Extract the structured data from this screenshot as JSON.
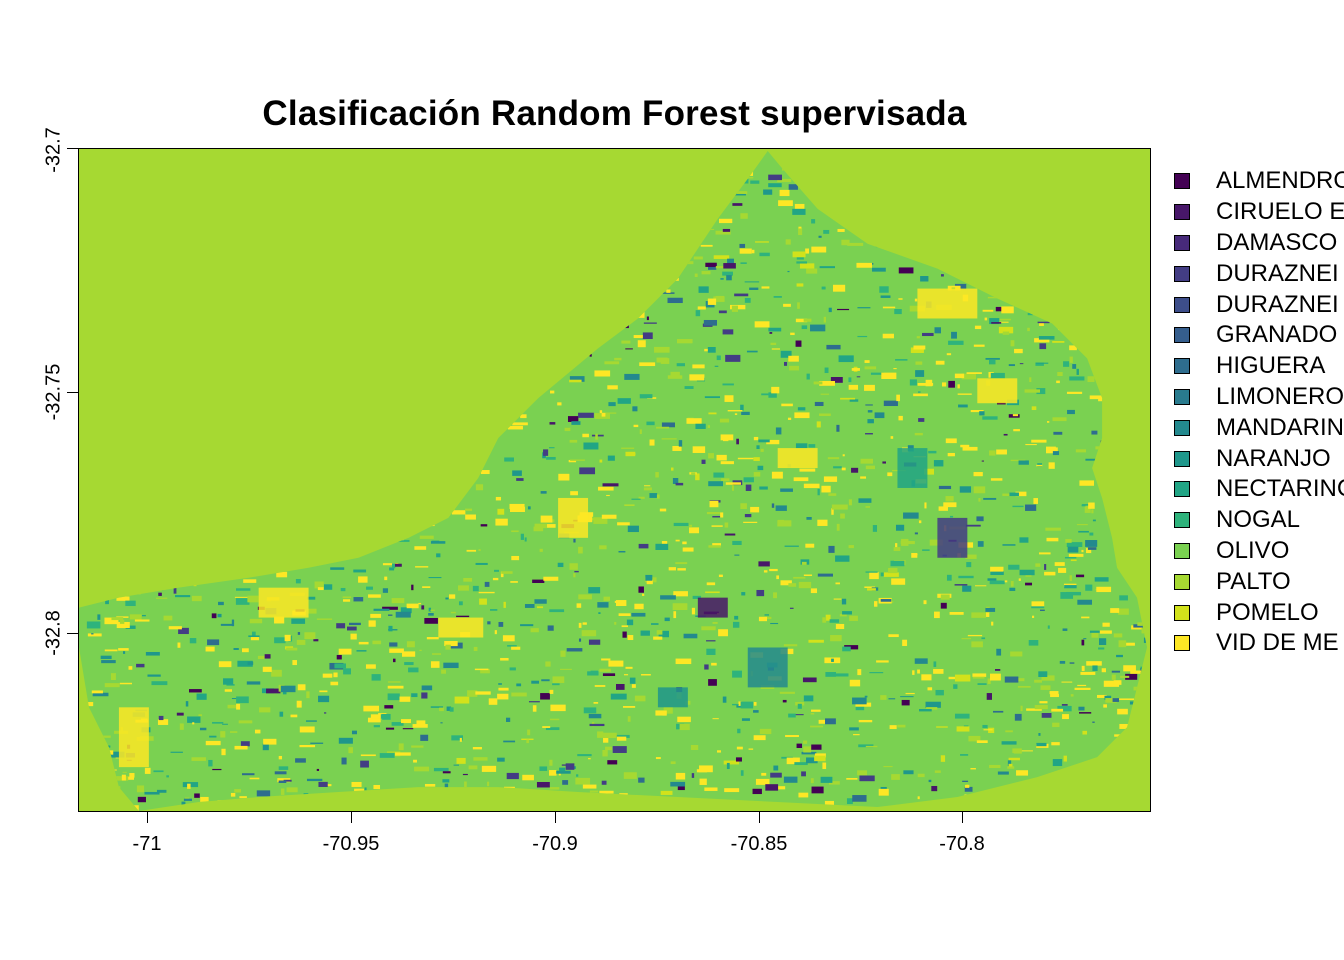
{
  "title": "Clasificación Random Forest supervisada",
  "x_axis": {
    "ticks": [
      "-71",
      "-70.95",
      "-70.9",
      "-70.85",
      "-70.8"
    ]
  },
  "y_axis": {
    "ticks": [
      "-32.7",
      "-32.75",
      "-32.8"
    ]
  },
  "background_color": "#a6d932",
  "legend": [
    {
      "label": "ALMENDRO",
      "color": "#440154"
    },
    {
      "label": "CIRUELO E",
      "color": "#481769"
    },
    {
      "label": "DAMASCO",
      "color": "#472a7a"
    },
    {
      "label": "DURAZNEI",
      "color": "#433d84"
    },
    {
      "label": "DURAZNEI",
      "color": "#3d4e8a"
    },
    {
      "label": "GRANADO",
      "color": "#355e8d"
    },
    {
      "label": "HIGUERA",
      "color": "#2e6d8e"
    },
    {
      "label": "LIMONERO",
      "color": "#297b8e"
    },
    {
      "label": "MANDARIN",
      "color": "#23898e"
    },
    {
      "label": "NARANJO",
      "color": "#1f978b"
    },
    {
      "label": "NECTARINC",
      "color": "#21a585"
    },
    {
      "label": "NOGAL",
      "color": "#2eb37c"
    },
    {
      "label": "OLIVO",
      "color": "#7ad151"
    },
    {
      "label": "PALTO",
      "color": "#a6d932"
    },
    {
      "label": "POMELO",
      "color": "#d2e21b"
    },
    {
      "label": "VID DE ME",
      "color": "#fde725"
    }
  ]
}
